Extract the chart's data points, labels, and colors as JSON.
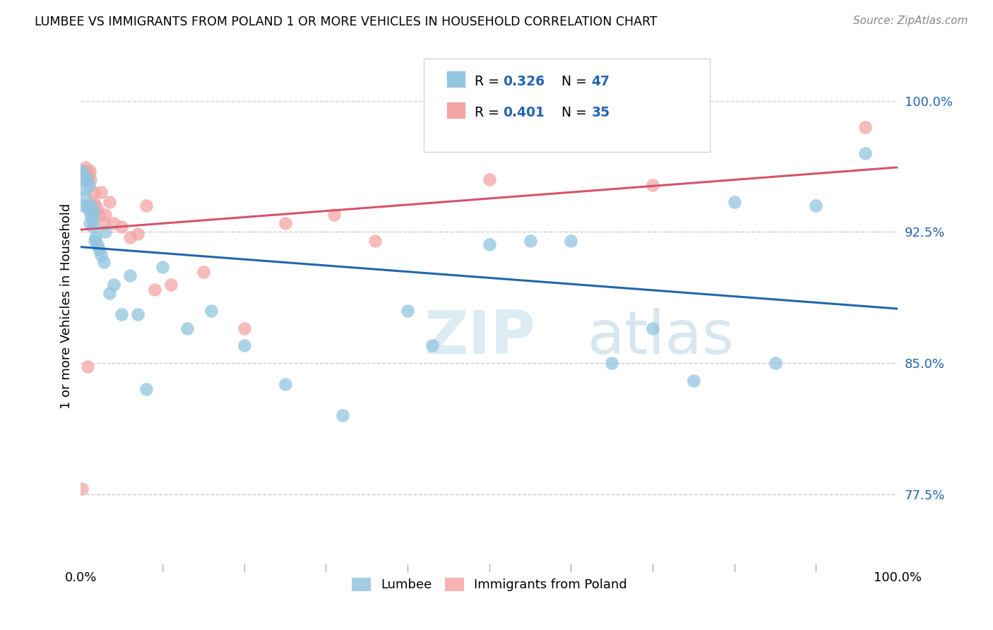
{
  "title": "LUMBEE VS IMMIGRANTS FROM POLAND 1 OR MORE VEHICLES IN HOUSEHOLD CORRELATION CHART",
  "source": "Source: ZipAtlas.com",
  "ylabel": "1 or more Vehicles in Household",
  "yticks": [
    "77.5%",
    "85.0%",
    "92.5%",
    "100.0%"
  ],
  "ytick_vals": [
    0.775,
    0.85,
    0.925,
    1.0
  ],
  "xlim": [
    0.0,
    1.0
  ],
  "ylim": [
    0.735,
    1.03
  ],
  "lumbee_color": "#92c5de",
  "poland_color": "#f4a6a6",
  "lumbee_line_color": "#2166ac",
  "poland_line_color": "#d6546a",
  "lumbee_R": "0.326",
  "lumbee_N": "47",
  "poland_R": "0.401",
  "poland_N": "35",
  "R_N_color": "#2166ac",
  "lumbee_x": [
    0.001,
    0.002,
    0.003,
    0.004,
    0.005,
    0.006,
    0.007,
    0.008,
    0.009,
    0.01,
    0.011,
    0.012,
    0.013,
    0.014,
    0.015,
    0.016,
    0.017,
    0.018,
    0.02,
    0.022,
    0.025,
    0.028,
    0.03,
    0.035,
    0.04,
    0.05,
    0.06,
    0.07,
    0.08,
    0.1,
    0.13,
    0.16,
    0.2,
    0.25,
    0.32,
    0.4,
    0.43,
    0.5,
    0.55,
    0.6,
    0.65,
    0.7,
    0.75,
    0.8,
    0.85,
    0.9,
    0.96
  ],
  "lumbee_y": [
    0.96,
    0.94,
    0.958,
    0.955,
    0.945,
    0.95,
    0.955,
    0.94,
    0.938,
    0.952,
    0.93,
    0.935,
    0.94,
    0.932,
    0.928,
    0.936,
    0.92,
    0.922,
    0.918,
    0.915,
    0.912,
    0.908,
    0.925,
    0.89,
    0.895,
    0.878,
    0.9,
    0.878,
    0.835,
    0.905,
    0.87,
    0.88,
    0.86,
    0.838,
    0.82,
    0.88,
    0.86,
    0.918,
    0.92,
    0.92,
    0.85,
    0.87,
    0.84,
    0.942,
    0.85,
    0.94,
    0.97
  ],
  "poland_x": [
    0.001,
    0.003,
    0.004,
    0.005,
    0.006,
    0.007,
    0.008,
    0.01,
    0.011,
    0.012,
    0.013,
    0.015,
    0.016,
    0.018,
    0.02,
    0.022,
    0.025,
    0.028,
    0.03,
    0.035,
    0.04,
    0.05,
    0.06,
    0.07,
    0.08,
    0.09,
    0.11,
    0.15,
    0.2,
    0.25,
    0.31,
    0.36,
    0.5,
    0.7,
    0.96
  ],
  "poland_y": [
    0.778,
    0.96,
    0.958,
    0.955,
    0.962,
    0.96,
    0.848,
    0.958,
    0.96,
    0.955,
    0.94,
    0.942,
    0.948,
    0.94,
    0.938,
    0.935,
    0.948,
    0.93,
    0.935,
    0.942,
    0.93,
    0.928,
    0.922,
    0.924,
    0.94,
    0.892,
    0.895,
    0.902,
    0.87,
    0.93,
    0.935,
    0.92,
    0.955,
    0.952,
    0.985
  ]
}
